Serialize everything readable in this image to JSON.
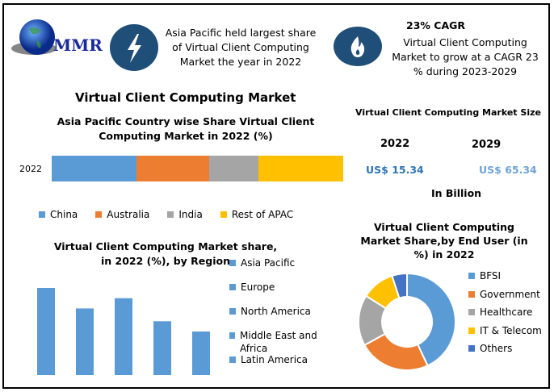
{
  "logo": {
    "text": "MMR"
  },
  "highlight1": {
    "icon": "lightning-icon",
    "text": "Asia Pacific held largest share of Virtual Client Computing Market the year in 2022"
  },
  "highlight2": {
    "icon": "flame-icon",
    "title": "23% CAGR",
    "text": "Virtual Client Computing Market to grow at a CAGR 23 % during 2023-2029"
  },
  "main_title": "Virtual Client Computing Market",
  "market_size": {
    "title": "Virtual Client Computing Market Size",
    "year1": "2022",
    "value1": "US$ 15.34",
    "year2": "2029",
    "value2": "US$ 65.34",
    "unit": "In Billion",
    "colors": {
      "value1": "#2e75b6",
      "value2": "#6fa3d8"
    }
  },
  "chart_data": [
    {
      "type": "bar",
      "orientation": "horizontal-stacked",
      "title": "Asia Pacific Country wise Share Virtual Client Computing  Market in 2022 (%)",
      "categories": [
        "2022"
      ],
      "series": [
        {
          "name": "China",
          "values": [
            29
          ],
          "color": "#5b9bd5"
        },
        {
          "name": "Australia",
          "values": [
            25
          ],
          "color": "#ed7d31"
        },
        {
          "name": "India",
          "values": [
            17
          ],
          "color": "#a5a5a5"
        },
        {
          "name": "Rest of APAC",
          "values": [
            29
          ],
          "color": "#ffc000"
        }
      ],
      "legend": "bottom"
    },
    {
      "type": "bar",
      "title": "Virtual Client Computing  Market share, in 2022 (%), by Region",
      "categories": [
        "Asia Pacific",
        "Europe",
        "North America",
        "Middle East and Africa",
        "Latin America"
      ],
      "values": [
        34,
        26,
        30,
        21,
        17
      ],
      "color": "#5b9bd5",
      "legend": "right"
    },
    {
      "type": "pie",
      "donut": true,
      "title": "Virtual Client Computing  Market Share,by End User (in %) in 2022",
      "categories": [
        "BFSI",
        "Government",
        "Healthcare",
        "IT & Telecom",
        "Others"
      ],
      "values": [
        43,
        24,
        17,
        11,
        5
      ],
      "colors": [
        "#5b9bd5",
        "#ed7d31",
        "#a5a5a5",
        "#ffc000",
        "#4472c4"
      ],
      "legend": "right"
    }
  ]
}
